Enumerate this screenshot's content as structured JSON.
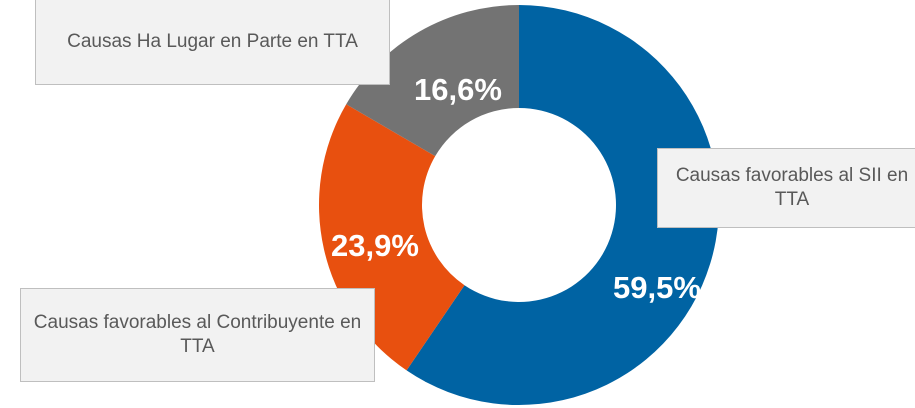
{
  "chart_data": {
    "type": "donut",
    "categories": [
      "Causas favorables al SII en TTA",
      "Causas favorables al Contribuyente en TTA",
      "Causas Ha Lugar en Parte en TTA"
    ],
    "values": [
      59.5,
      23.9,
      16.6
    ],
    "value_labels": [
      "59,5%",
      "23,9%",
      "16,6%"
    ],
    "colors": [
      "#0063a3",
      "#e8500f",
      "#737373"
    ]
  }
}
